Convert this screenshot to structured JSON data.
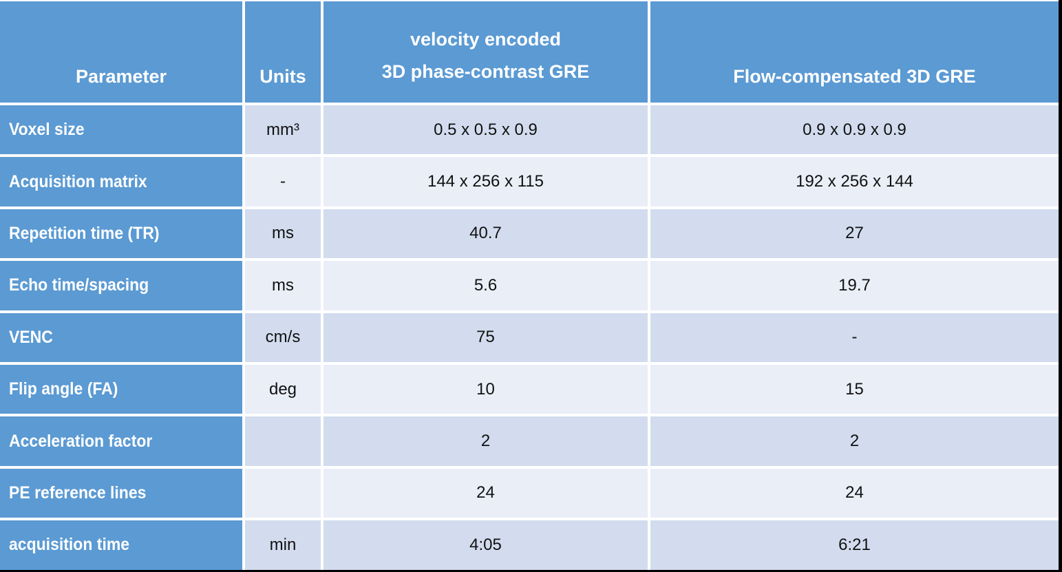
{
  "colors": {
    "header_blue": "#5b9ad3",
    "band_dark": "#d2dcee",
    "band_light": "#e9eef7",
    "grid_line": "#ffffff",
    "edge_black": "#000000",
    "header_text": "#ffffff",
    "data_text": "#111111"
  },
  "table": {
    "header": {
      "col1": "Parameter",
      "col2": "Units",
      "col3_line1": "velocity encoded",
      "col3_line2": "3D phase-contrast GRE",
      "col4": "Flow-compensated 3D GRE"
    },
    "rows": [
      {
        "parameter": "Voxel size",
        "units": "mm³",
        "ve_pc_gre": "0.5 x 0.5 x 0.9",
        "fc_gre": "0.9 x 0.9 x 0.9"
      },
      {
        "parameter": "Acquisition matrix",
        "units": "-",
        "ve_pc_gre": "144 x 256 x 115",
        "fc_gre": "192 x 256 x 144"
      },
      {
        "parameter": "Repetition time (TR)",
        "units": "ms",
        "ve_pc_gre": "40.7",
        "fc_gre": "27"
      },
      {
        "parameter": "Echo time/spacing",
        "units": "ms",
        "ve_pc_gre": "5.6",
        "fc_gre": "19.7"
      },
      {
        "parameter": "VENC",
        "units": "cm/s",
        "ve_pc_gre": "75",
        "fc_gre": "-"
      },
      {
        "parameter": "Flip angle (FA)",
        "units": "deg",
        "ve_pc_gre": "10",
        "fc_gre": "15"
      },
      {
        "parameter": "Acceleration factor",
        "units": "",
        "ve_pc_gre": "2",
        "fc_gre": "2"
      },
      {
        "parameter": "PE reference lines",
        "units": "",
        "ve_pc_gre": "24",
        "fc_gre": "24"
      },
      {
        "parameter": "acquisition time",
        "units": "min",
        "ve_pc_gre": "4:05",
        "fc_gre": "6:21"
      }
    ]
  }
}
